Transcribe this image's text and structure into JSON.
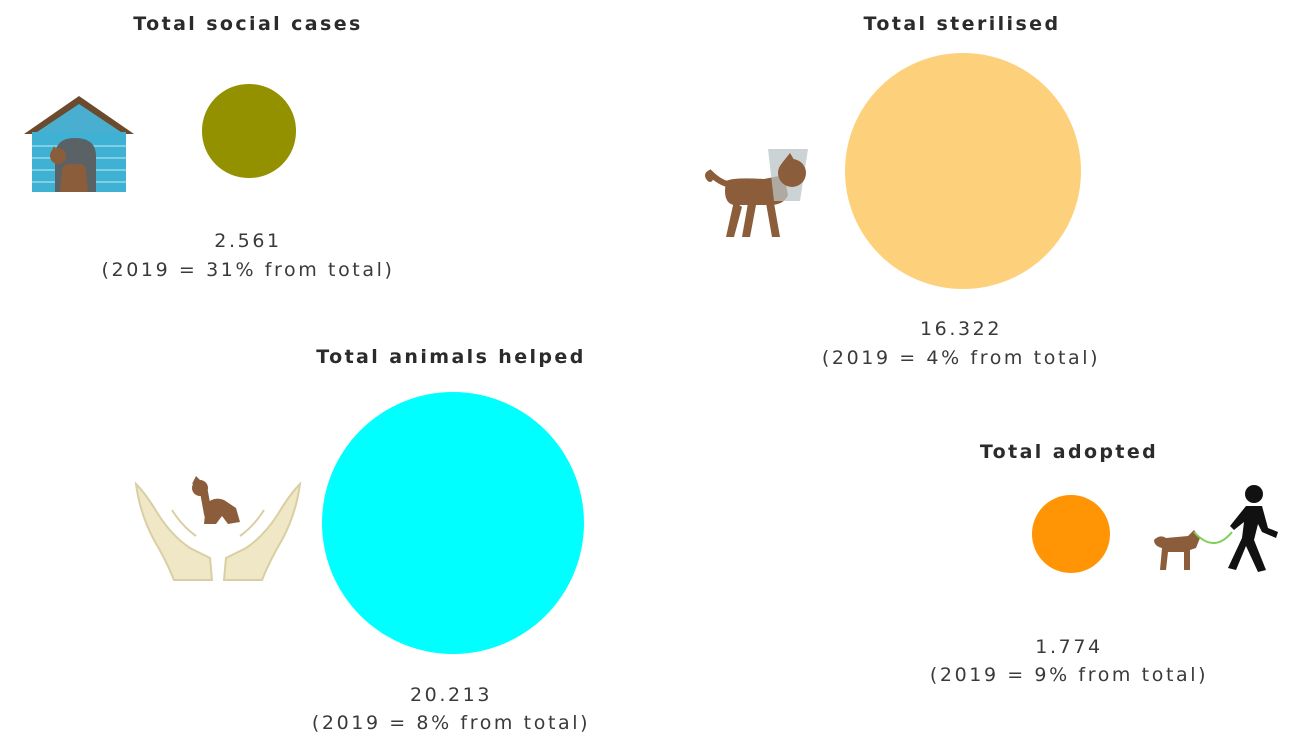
{
  "chart_data": {
    "type": "bubble",
    "metrics": [
      {
        "key": "social",
        "title": "Total social cases",
        "value": 2561,
        "value_label": "2.561",
        "note": "(2019 = 31% from total)",
        "color": "#949100",
        "icon": "doghouse-icon"
      },
      {
        "key": "sterilised",
        "title": "Total sterilised",
        "value": 16322,
        "value_label": "16.322",
        "note": "(2019 = 4% from total)",
        "color": "#fdd17c",
        "icon": "dog-with-cone-icon"
      },
      {
        "key": "helped",
        "title": "Total animals helped",
        "value": 20213,
        "value_label": "20.213",
        "note": "(2019 = 8% from total)",
        "color": "#00ffff",
        "icon": "hands-holding-dog-icon"
      },
      {
        "key": "adopted",
        "title": "Total adopted",
        "value": 1774,
        "value_label": "1.774",
        "note": "(2019 = 9% from total)",
        "color": "#ff9505",
        "icon": "person-walking-dog-icon"
      }
    ]
  }
}
